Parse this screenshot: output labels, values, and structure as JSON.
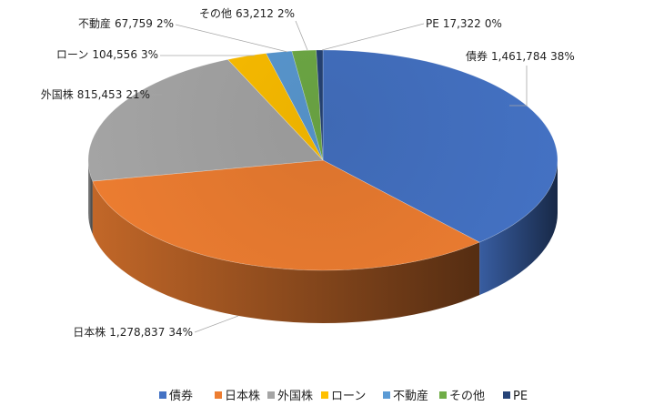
{
  "chart_data": {
    "type": "pie",
    "style": "3d",
    "categories": [
      "債券",
      "日本株",
      "外国株",
      "ローン",
      "不動産",
      "その他",
      "PE"
    ],
    "values": [
      1461784,
      1278837,
      815453,
      104556,
      67759,
      63212,
      17322
    ],
    "value_labels": [
      "1,461,784",
      "1,278,837",
      "815,453",
      "104,556",
      "67,759",
      "63,212",
      "17,322"
    ],
    "percent_labels": [
      "38%",
      "34%",
      "21%",
      "3%",
      "2%",
      "2%",
      "0%"
    ],
    "colors": [
      "#4472C4",
      "#ED7D31",
      "#A5A5A5",
      "#FFC000",
      "#5B9BD5",
      "#70AD47",
      "#264478"
    ],
    "legend_position": "bottom",
    "title": ""
  }
}
